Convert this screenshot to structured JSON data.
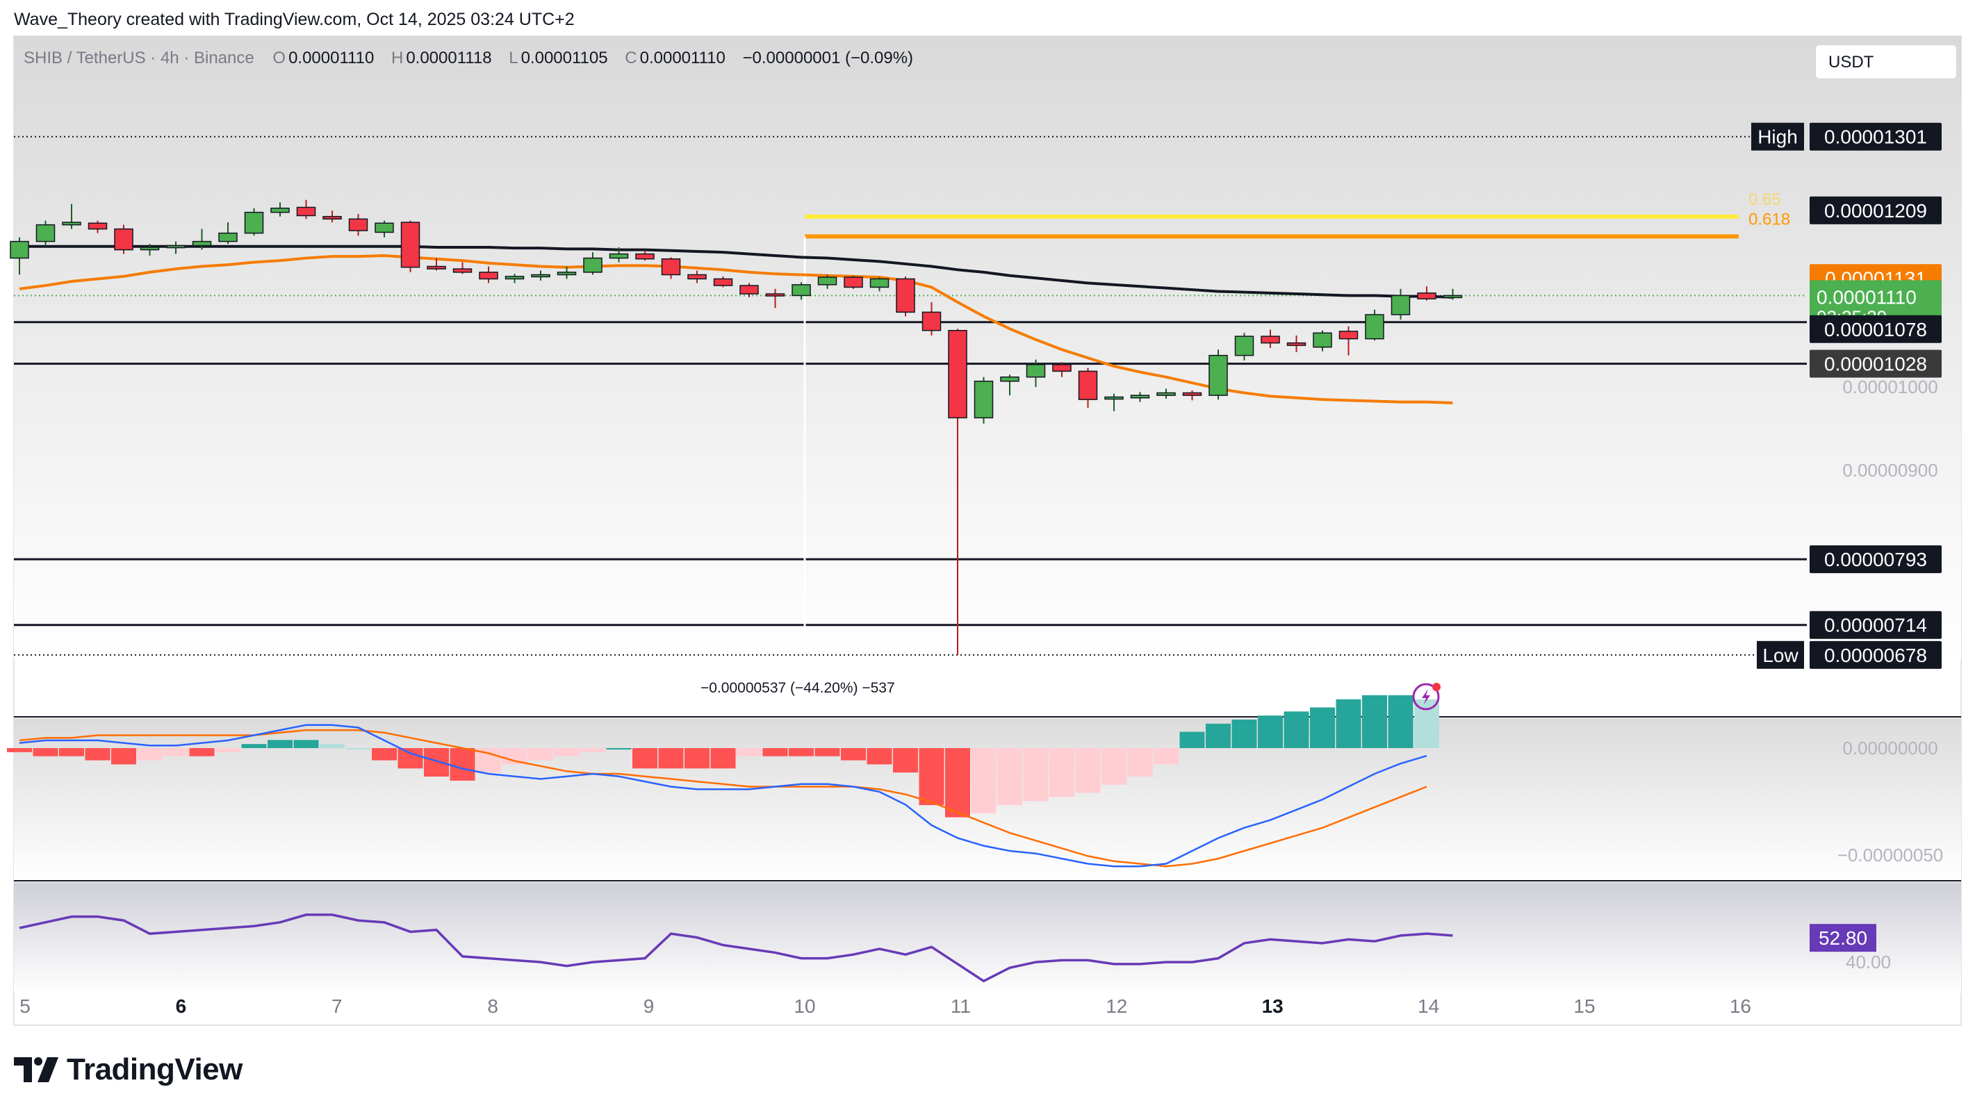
{
  "header": {
    "created_by": "Wave_Theory created with TradingView.com, Oct 14, 2025 03:24 UTC+2"
  },
  "symbol_bar": {
    "symbol": "SHIB / TetherUS · 4h · Binance",
    "open_label": "O",
    "open": "0.00001110",
    "high_label": "H",
    "high": "0.00001118",
    "low_label": "L",
    "low": "0.00001105",
    "close_label": "C",
    "close": "0.00001110",
    "change": "−0.00000001 (−0.09%)"
  },
  "currency_button": "USDT",
  "branding": "TradingView",
  "colors": {
    "up": "#4caf50",
    "down": "#f23645",
    "ema_fast": "#f57c00",
    "ema_slow": "#131722",
    "fib_618": "#ff9800",
    "fib_65": "#ffeb3b",
    "macd": "#2962ff",
    "signal": "#ff6d00",
    "rsi": "#673ab7",
    "hist_up_strong": "#26a69a",
    "hist_up_weak": "#b2dfdb",
    "hist_down_strong": "#ff5252",
    "hist_down_weak": "#ffcdd2"
  },
  "chart_data": {
    "type": "candlestick",
    "interval": "4h",
    "ylim": [
      6.72e-06,
      1.34e-05
    ],
    "x_ticks": [
      "5",
      "6",
      "7",
      "8",
      "9",
      "10",
      "11",
      "12",
      "13",
      "14",
      "15",
      "16"
    ],
    "x_tick_bold": [
      "6",
      "13"
    ],
    "y_axis_labels": [
      "0.00001000",
      "0.00000900"
    ],
    "candles": [
      {
        "o": 1.155e-05,
        "h": 1.18e-05,
        "l": 1.135e-05,
        "c": 1.175e-05
      },
      {
        "o": 1.175e-05,
        "h": 1.2e-05,
        "l": 1.17e-05,
        "c": 1.195e-05
      },
      {
        "o": 1.195e-05,
        "h": 1.22e-05,
        "l": 1.19e-05,
        "c": 1.198e-05
      },
      {
        "o": 1.197e-05,
        "h": 1.2e-05,
        "l": 1.185e-05,
        "c": 1.19e-05
      },
      {
        "o": 1.19e-05,
        "h": 1.195e-05,
        "l": 1.16e-05,
        "c": 1.165e-05
      },
      {
        "o": 1.165e-05,
        "h": 1.172e-05,
        "l": 1.158e-05,
        "c": 1.168e-05
      },
      {
        "o": 1.168e-05,
        "h": 1.175e-05,
        "l": 1.16e-05,
        "c": 1.17e-05
      },
      {
        "o": 1.17e-05,
        "h": 1.19e-05,
        "l": 1.165e-05,
        "c": 1.175e-05
      },
      {
        "o": 1.175e-05,
        "h": 1.198e-05,
        "l": 1.172e-05,
        "c": 1.185e-05
      },
      {
        "o": 1.185e-05,
        "h": 1.215e-05,
        "l": 1.182e-05,
        "c": 1.21e-05
      },
      {
        "o": 1.21e-05,
        "h": 1.222e-05,
        "l": 1.205e-05,
        "c": 1.215e-05
      },
      {
        "o": 1.216e-05,
        "h": 1.225e-05,
        "l": 1.202e-05,
        "c": 1.206e-05
      },
      {
        "o": 1.205e-05,
        "h": 1.212e-05,
        "l": 1.198e-05,
        "c": 1.202e-05
      },
      {
        "o": 1.202e-05,
        "h": 1.208e-05,
        "l": 1.182e-05,
        "c": 1.188e-05
      },
      {
        "o": 1.186e-05,
        "h": 1.2e-05,
        "l": 1.18e-05,
        "c": 1.197e-05
      },
      {
        "o": 1.198e-05,
        "h": 1.2e-05,
        "l": 1.138e-05,
        "c": 1.144e-05
      },
      {
        "o": 1.145e-05,
        "h": 1.155e-05,
        "l": 1.14e-05,
        "c": 1.142e-05
      },
      {
        "o": 1.142e-05,
        "h": 1.15e-05,
        "l": 1.136e-05,
        "c": 1.138e-05
      },
      {
        "o": 1.138e-05,
        "h": 1.145e-05,
        "l": 1.125e-05,
        "c": 1.13e-05
      },
      {
        "o": 1.13e-05,
        "h": 1.136e-05,
        "l": 1.125e-05,
        "c": 1.133e-05
      },
      {
        "o": 1.133e-05,
        "h": 1.14e-05,
        "l": 1.128e-05,
        "c": 1.135e-05
      },
      {
        "o": 1.135e-05,
        "h": 1.145e-05,
        "l": 1.13e-05,
        "c": 1.138e-05
      },
      {
        "o": 1.138e-05,
        "h": 1.162e-05,
        "l": 1.135e-05,
        "c": 1.155e-05
      },
      {
        "o": 1.155e-05,
        "h": 1.168e-05,
        "l": 1.15e-05,
        "c": 1.16e-05
      },
      {
        "o": 1.16e-05,
        "h": 1.163e-05,
        "l": 1.152e-05,
        "c": 1.154e-05
      },
      {
        "o": 1.154e-05,
        "h": 1.156e-05,
        "l": 1.13e-05,
        "c": 1.135e-05
      },
      {
        "o": 1.135e-05,
        "h": 1.14e-05,
        "l": 1.125e-05,
        "c": 1.13e-05
      },
      {
        "o": 1.13e-05,
        "h": 1.133e-05,
        "l": 1.12e-05,
        "c": 1.122e-05
      },
      {
        "o": 1.122e-05,
        "h": 1.125e-05,
        "l": 1.108e-05,
        "c": 1.112e-05
      },
      {
        "o": 1.112e-05,
        "h": 1.118e-05,
        "l": 1.095e-05,
        "c": 1.11e-05
      },
      {
        "o": 1.11e-05,
        "h": 1.126e-05,
        "l": 1.105e-05,
        "c": 1.123e-05
      },
      {
        "o": 1.123e-05,
        "h": 1.135e-05,
        "l": 1.118e-05,
        "c": 1.132e-05
      },
      {
        "o": 1.132e-05,
        "h": 1.134e-05,
        "l": 1.118e-05,
        "c": 1.12e-05
      },
      {
        "o": 1.12e-05,
        "h": 1.132e-05,
        "l": 1.115e-05,
        "c": 1.13e-05
      },
      {
        "o": 1.13e-05,
        "h": 1.133e-05,
        "l": 1.085e-05,
        "c": 1.09e-05
      },
      {
        "o": 1.09e-05,
        "h": 1.102e-05,
        "l": 1.062e-05,
        "c": 1.068e-05
      },
      {
        "o": 1.068e-05,
        "h": 1.07e-05,
        "l": 6.78e-06,
        "c": 9.63e-06
      },
      {
        "o": 9.63e-06,
        "h": 1.012e-05,
        "l": 9.56e-06,
        "c": 1.007e-05
      },
      {
        "o": 1.007e-05,
        "h": 1.015e-05,
        "l": 9.9e-06,
        "c": 1.012e-05
      },
      {
        "o": 1.012e-05,
        "h": 1.033e-05,
        "l": 1e-05,
        "c": 1.027e-05
      },
      {
        "o": 1.027e-05,
        "h": 1.03e-05,
        "l": 1.012e-05,
        "c": 1.019e-05
      },
      {
        "o": 1.019e-05,
        "h": 1.023e-05,
        "l": 9.75e-06,
        "c": 9.85e-06
      },
      {
        "o": 9.86e-06,
        "h": 9.92e-06,
        "l": 9.71e-06,
        "c": 9.88e-06
      },
      {
        "o": 9.87e-06,
        "h": 9.94e-06,
        "l": 9.82e-06,
        "c": 9.9e-06
      },
      {
        "o": 9.9e-06,
        "h": 9.98e-06,
        "l": 9.86e-06,
        "c": 9.93e-06
      },
      {
        "o": 9.93e-06,
        "h": 9.96e-06,
        "l": 9.84e-06,
        "c": 9.9e-06
      },
      {
        "o": 9.9e-06,
        "h": 1.045e-05,
        "l": 9.85e-06,
        "c": 1.038e-05
      },
      {
        "o": 1.038e-05,
        "h": 1.065e-05,
        "l": 1.032e-05,
        "c": 1.061e-05
      },
      {
        "o": 1.061e-05,
        "h": 1.069e-05,
        "l": 1.047e-05,
        "c": 1.053e-05
      },
      {
        "o": 1.053e-05,
        "h": 1.062e-05,
        "l": 1.042e-05,
        "c": 1.05e-05
      },
      {
        "o": 1.048e-05,
        "h": 1.068e-05,
        "l": 1.043e-05,
        "c": 1.065e-05
      },
      {
        "o": 1.067e-05,
        "h": 1.073e-05,
        "l": 1.038e-05,
        "c": 1.058e-05
      },
      {
        "o": 1.058e-05,
        "h": 1.093e-05,
        "l": 1.056e-05,
        "c": 1.087e-05
      },
      {
        "o": 1.087e-05,
        "h": 1.118e-05,
        "l": 1.081e-05,
        "c": 1.11e-05
      },
      {
        "o": 1.113e-05,
        "h": 1.121e-05,
        "l": 1.104e-05,
        "c": 1.106e-05
      },
      {
        "o": 1.11e-05,
        "h": 1.118e-05,
        "l": 1.105e-05,
        "c": 1.11e-05
      }
    ],
    "ema_fast": [
      1.118e-05,
      1.122e-05,
      1.127e-05,
      1.13e-05,
      1.133e-05,
      1.138e-05,
      1.142e-05,
      1.145e-05,
      1.147e-05,
      1.15e-05,
      1.152e-05,
      1.155e-05,
      1.157e-05,
      1.157e-05,
      1.158e-05,
      1.156e-05,
      1.154e-05,
      1.152e-05,
      1.149e-05,
      1.147e-05,
      1.145e-05,
      1.144e-05,
      1.145e-05,
      1.146e-05,
      1.146e-05,
      1.145e-05,
      1.143e-05,
      1.141e-05,
      1.138e-05,
      1.136e-05,
      1.135e-05,
      1.134e-05,
      1.133e-05,
      1.132e-05,
      1.128e-05,
      1.12e-05,
      1.102e-05,
      1.085e-05,
      1.07e-05,
      1.057e-05,
      1.045e-05,
      1.035e-05,
      1.025e-05,
      1.018e-05,
      1.012e-05,
      1.005e-05,
      9.98e-06,
      9.93e-06,
      9.89e-06,
      9.87e-06,
      9.85e-06,
      9.84e-06,
      9.83e-06,
      9.82e-06,
      9.82e-06,
      9.81e-06
    ],
    "ema_slow": [
      1.169e-05,
      1.169e-05,
      1.169e-05,
      1.169e-05,
      1.169e-05,
      1.169e-05,
      1.169e-05,
      1.169e-05,
      1.169e-05,
      1.169e-05,
      1.169e-05,
      1.169e-05,
      1.169e-05,
      1.169e-05,
      1.169e-05,
      1.169e-05,
      1.168e-05,
      1.168e-05,
      1.168e-05,
      1.167e-05,
      1.167e-05,
      1.166e-05,
      1.166e-05,
      1.165e-05,
      1.165e-05,
      1.164e-05,
      1.163e-05,
      1.162e-05,
      1.16e-05,
      1.158e-05,
      1.156e-05,
      1.155e-05,
      1.153e-05,
      1.151e-05,
      1.148e-05,
      1.145e-05,
      1.141e-05,
      1.138e-05,
      1.134e-05,
      1.131e-05,
      1.128e-05,
      1.125e-05,
      1.123e-05,
      1.121e-05,
      1.119e-05,
      1.117e-05,
      1.115e-05,
      1.114e-05,
      1.113e-05,
      1.112e-05,
      1.111e-05,
      1.11e-05,
      1.11e-05,
      1.109e-05,
      1.109e-05,
      1.108e-05
    ],
    "horizontal_levels": [
      {
        "label": "0.00001209",
        "value": 1.209e-05
      },
      {
        "label": "0.00001078",
        "value": 1.078e-05
      },
      {
        "label": "0.00001028",
        "value": 1.028e-05
      },
      {
        "label": "0.00000793",
        "value": 7.93e-06
      },
      {
        "label": "0.00000714",
        "value": 7.14e-06
      }
    ],
    "fib_levels": [
      {
        "label": "0.65",
        "value": 1.209e-05
      },
      {
        "label": "0.618",
        "value": 1.181e-05
      }
    ],
    "high_marker": {
      "label": "High",
      "value": "0.00001301"
    },
    "low_marker": {
      "label": "Low",
      "value": "0.00000678"
    },
    "last_price": {
      "value": "0.00001110",
      "countdown": "02:35:39"
    },
    "ema_price_label": "0.00001131",
    "measure_label": "−0.00000537 (−44.20%) −537",
    "macd": {
      "y_labels": [
        "0.00000000",
        "−0.00000050"
      ],
      "ylim": [
        -6e-07,
        1.2e-07
      ],
      "histogram": [
        -0.01,
        -0.02,
        -0.02,
        -0.03,
        -0.04,
        -0.03,
        -0.02,
        -0.02,
        -0.01,
        0.01,
        0.02,
        0.02,
        0.01,
        0.0,
        -0.03,
        -0.05,
        -0.07,
        -0.08,
        -0.06,
        -0.04,
        -0.03,
        -0.02,
        -0.01,
        0.0,
        -0.05,
        -0.05,
        -0.05,
        -0.05,
        -0.02,
        -0.02,
        -0.02,
        -0.02,
        -0.03,
        -0.04,
        -0.06,
        -0.14,
        -0.17,
        -0.16,
        -0.14,
        -0.13,
        -0.12,
        -0.11,
        -0.09,
        -0.07,
        -0.04,
        0.04,
        0.06,
        0.07,
        0.08,
        0.09,
        0.1,
        0.12,
        0.13,
        0.13,
        0.12
      ],
      "macd_line": [
        0.02,
        0.03,
        0.03,
        0.03,
        0.02,
        0.01,
        0.01,
        0.02,
        0.03,
        0.05,
        0.07,
        0.09,
        0.09,
        0.08,
        0.03,
        -0.02,
        -0.05,
        -0.08,
        -0.1,
        -0.11,
        -0.12,
        -0.11,
        -0.1,
        -0.11,
        -0.13,
        -0.15,
        -0.16,
        -0.16,
        -0.16,
        -0.15,
        -0.14,
        -0.14,
        -0.15,
        -0.17,
        -0.22,
        -0.3,
        -0.35,
        -0.38,
        -0.4,
        -0.41,
        -0.43,
        -0.45,
        -0.46,
        -0.46,
        -0.45,
        -0.4,
        -0.35,
        -0.31,
        -0.28,
        -0.24,
        -0.2,
        -0.15,
        -0.1,
        -0.06,
        -0.03
      ],
      "signal_line": [
        0.03,
        0.04,
        0.04,
        0.05,
        0.05,
        0.05,
        0.05,
        0.05,
        0.05,
        0.05,
        0.06,
        0.07,
        0.07,
        0.07,
        0.06,
        0.04,
        0.02,
        0.0,
        -0.02,
        -0.05,
        -0.07,
        -0.09,
        -0.1,
        -0.1,
        -0.11,
        -0.12,
        -0.13,
        -0.14,
        -0.15,
        -0.15,
        -0.15,
        -0.15,
        -0.15,
        -0.16,
        -0.18,
        -0.21,
        -0.25,
        -0.29,
        -0.33,
        -0.36,
        -0.39,
        -0.42,
        -0.44,
        -0.45,
        -0.46,
        -0.45,
        -0.43,
        -0.4,
        -0.37,
        -0.34,
        -0.31,
        -0.27,
        -0.23,
        -0.19,
        -0.15
      ]
    },
    "rsi": {
      "value_label": "52.80",
      "y_label": "40.00",
      "ylim": [
        25,
        80
      ],
      "values": [
        58,
        61,
        64,
        64,
        62,
        55,
        56,
        57,
        58,
        59,
        61,
        65,
        65,
        62,
        61,
        56,
        57,
        43,
        42,
        41,
        40,
        38,
        40,
        41,
        42,
        55,
        53,
        49,
        47,
        45,
        42,
        42,
        44,
        47,
        44,
        48,
        39,
        30,
        37,
        40,
        41,
        41,
        39,
        39,
        40,
        40,
        42,
        50,
        52,
        51,
        50,
        52,
        51,
        54,
        55,
        54
      ]
    }
  }
}
